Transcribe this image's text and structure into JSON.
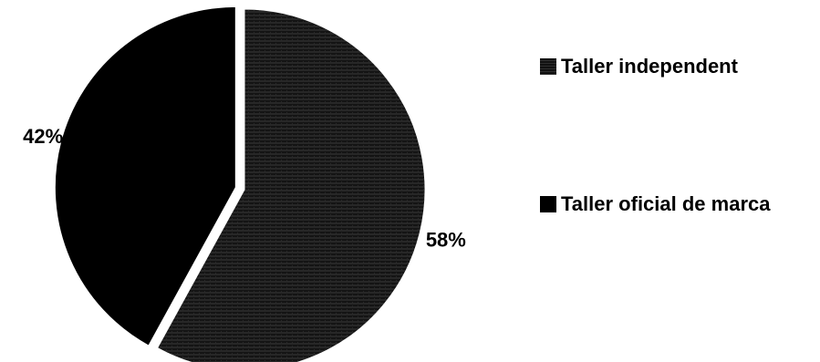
{
  "chart_data": {
    "type": "pie",
    "slices": [
      {
        "label": "Taller independent",
        "value": 58,
        "display": "58%",
        "color": "#1c1c1c",
        "texture": "hatched",
        "exploded": false
      },
      {
        "label": "Taller oficial de marca",
        "value": 42,
        "display": "42%",
        "color": "#000000",
        "texture": "solid",
        "exploded": true
      }
    ],
    "legend_position": "right",
    "title": ""
  }
}
